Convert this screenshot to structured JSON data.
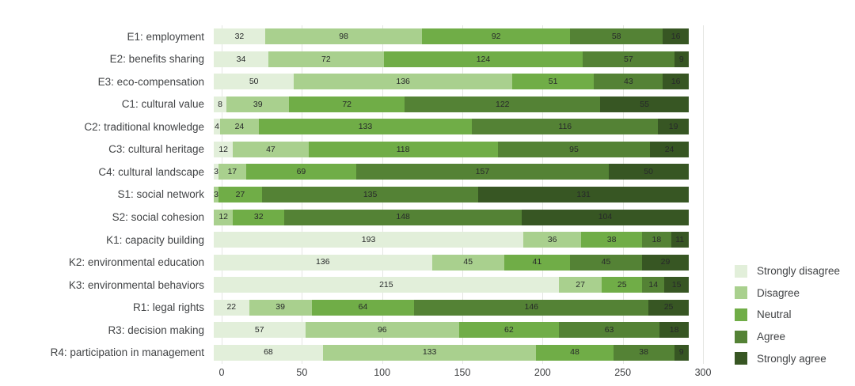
{
  "chart_data": {
    "type": "bar",
    "variant": "horizontal_stacked",
    "title": "",
    "xlabel": "",
    "ylabel": "",
    "xlim": [
      0,
      300
    ],
    "x_ticks": [
      0,
      50,
      100,
      150,
      200,
      250,
      300
    ],
    "grid": "vertical",
    "grid_color": "#e4e6e2",
    "legend_position": "right",
    "categories": [
      "E1: employment",
      "E2: benefits sharing",
      "E3: eco-compensation",
      "C1: cultural value",
      "C2: traditional knowledge",
      "C3: cultural heritage",
      "C4: cultural landscape",
      "S1: social network",
      "S2: social cohesion",
      "K1: capacity building",
      "K2: environmental education",
      "K3: environmental behaviors",
      "R1: legal rights",
      "R3: decision making",
      "R4: participation in management"
    ],
    "series": [
      {
        "name": "Strongly disagree",
        "color": "#e2efda",
        "values": [
          32,
          34,
          50,
          8,
          4,
          12,
          3,
          0,
          0,
          193,
          136,
          215,
          22,
          57,
          68
        ]
      },
      {
        "name": "Disagree",
        "color": "#a9d08e",
        "values": [
          98,
          72,
          136,
          39,
          24,
          47,
          17,
          3,
          12,
          36,
          45,
          27,
          39,
          96,
          133
        ]
      },
      {
        "name": "Neutral",
        "color": "#70ad47",
        "values": [
          92,
          124,
          51,
          72,
          133,
          118,
          69,
          27,
          32,
          38,
          41,
          25,
          64,
          62,
          48
        ]
      },
      {
        "name": "Agree",
        "color": "#548235",
        "values": [
          58,
          57,
          43,
          122,
          116,
          95,
          157,
          135,
          148,
          18,
          45,
          14,
          146,
          63,
          38
        ]
      },
      {
        "name": "Strongly agree",
        "color": "#375623",
        "values": [
          16,
          9,
          16,
          55,
          19,
          24,
          50,
          131,
          104,
          11,
          29,
          15,
          25,
          18,
          9
        ]
      }
    ],
    "value_labels": "shown_inside_segments"
  },
  "layout_text": {
    "legend_items": [
      "Strongly disagree",
      "Disagree",
      "Neutral",
      "Agree",
      "Strongly agree"
    ]
  }
}
